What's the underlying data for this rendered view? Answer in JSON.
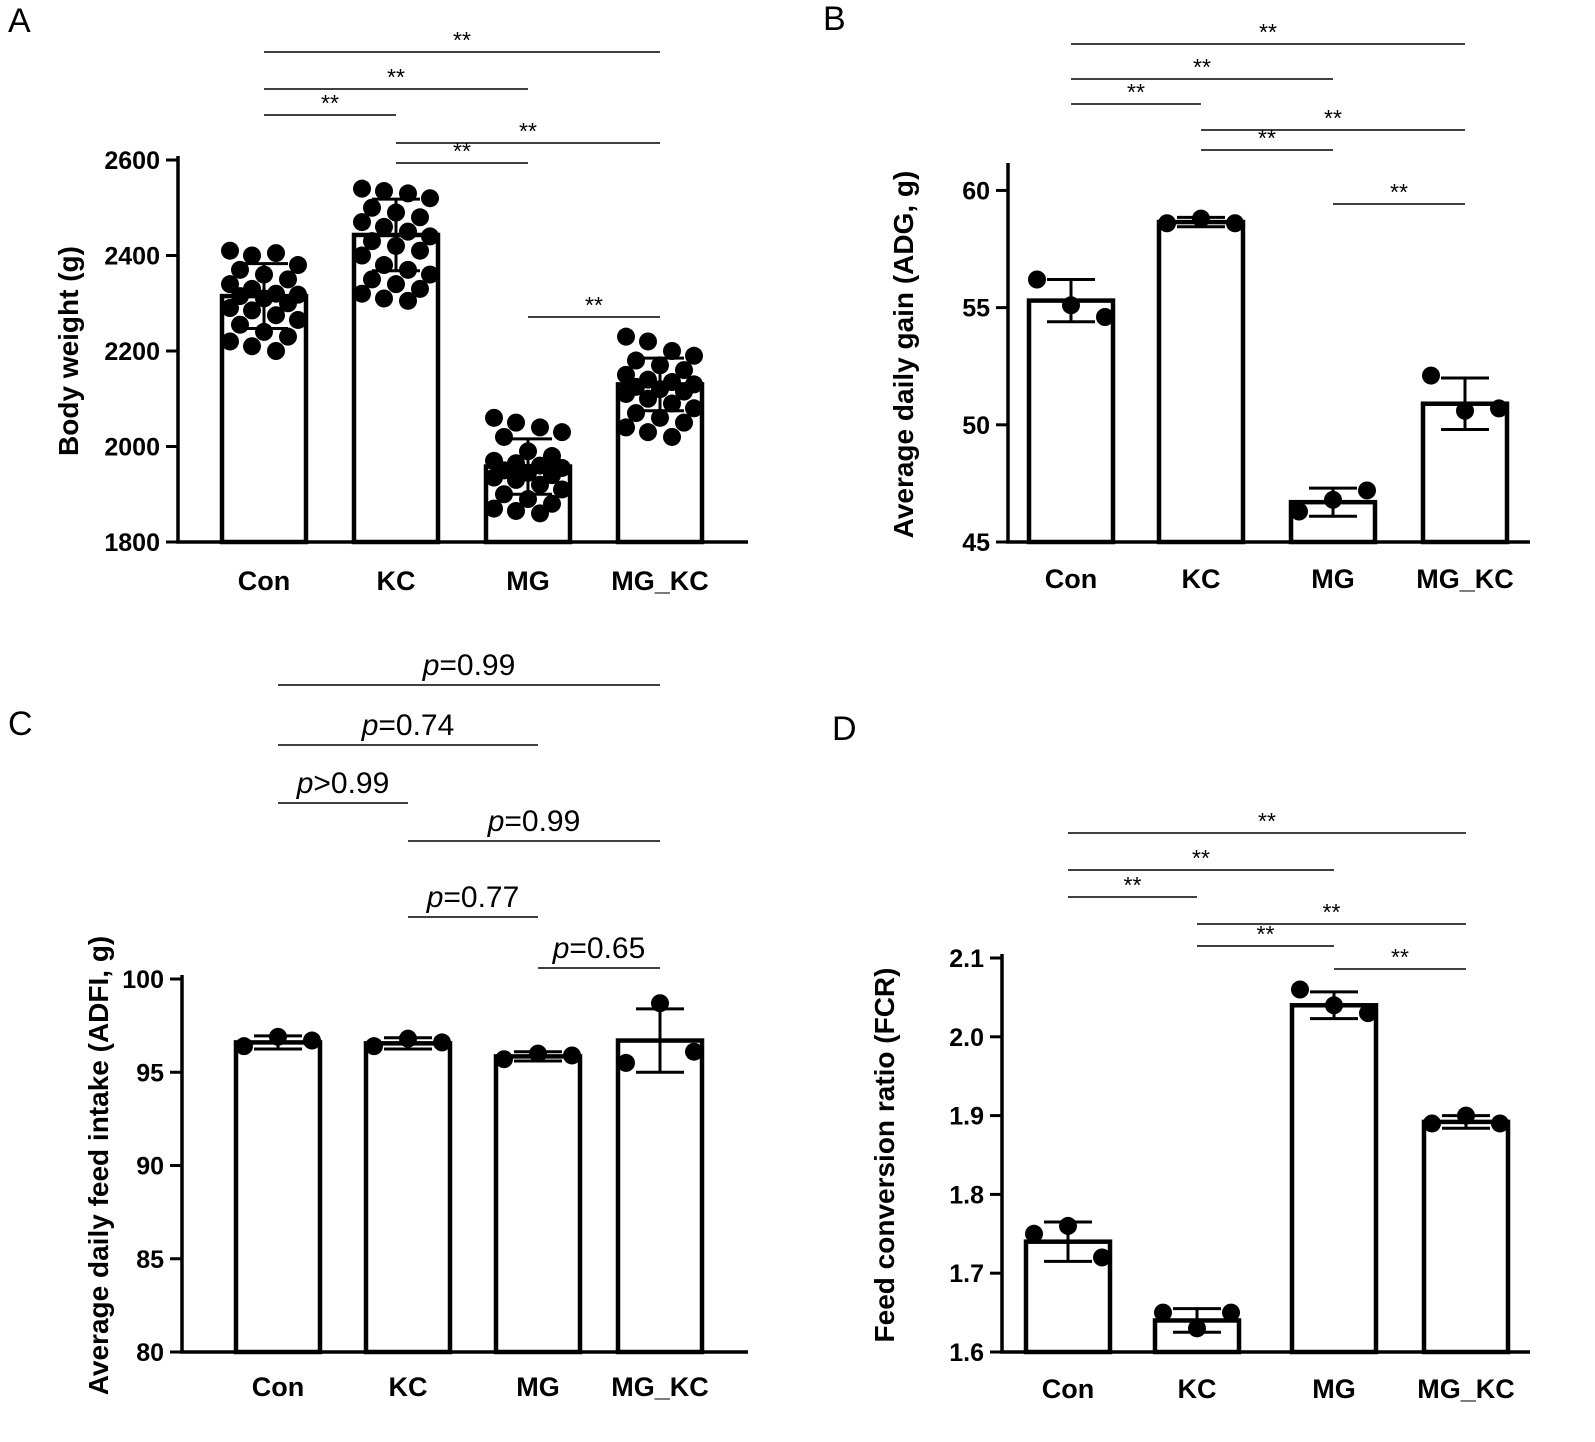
{
  "chart_data": [
    {
      "panel": "A",
      "type": "bar",
      "ylabel": "Body weight (g)",
      "ylim": [
        1800,
        2600
      ],
      "yticks": [
        1800,
        2000,
        2200,
        2400,
        2600
      ],
      "categories": [
        "Con",
        "KC",
        "MG",
        "MG_KC"
      ],
      "values": [
        2315,
        2443,
        1958,
        2130
      ],
      "errors": [
        68,
        75,
        58,
        55
      ],
      "points": [
        [
          2410,
          2400,
          2405,
          2380,
          2370,
          2360,
          2350,
          2340,
          2330,
          2320,
          2318,
          2315,
          2310,
          2300,
          2290,
          2285,
          2275,
          2265,
          2255,
          2240,
          2230,
          2220,
          2210,
          2200
        ],
        [
          2540,
          2535,
          2530,
          2520,
          2500,
          2490,
          2480,
          2470,
          2460,
          2450,
          2440,
          2430,
          2420,
          2410,
          2400,
          2380,
          2370,
          2360,
          2350,
          2340,
          2330,
          2320,
          2310,
          2305
        ],
        [
          2060,
          2050,
          2040,
          2030,
          2020,
          1990,
          1980,
          1970,
          1965,
          1960,
          1955,
          1950,
          1945,
          1940,
          1935,
          1930,
          1920,
          1910,
          1900,
          1890,
          1880,
          1870,
          1865,
          1860
        ],
        [
          2230,
          2220,
          2200,
          2190,
          2180,
          2170,
          2160,
          2150,
          2140,
          2135,
          2130,
          2125,
          2120,
          2115,
          2110,
          2100,
          2090,
          2080,
          2070,
          2060,
          2050,
          2040,
          2030,
          2020
        ]
      ],
      "comparisons": [
        {
          "from": 0,
          "to": 3,
          "label": "**"
        },
        {
          "from": 0,
          "to": 2,
          "label": "**"
        },
        {
          "from": 0,
          "to": 1,
          "label": "**"
        },
        {
          "from": 1,
          "to": 3,
          "label": "**"
        },
        {
          "from": 1,
          "to": 2,
          "label": "**"
        },
        {
          "from": 2,
          "to": 3,
          "label": "**"
        }
      ]
    },
    {
      "panel": "B",
      "type": "bar",
      "ylabel": "Average daily gain (ADG, g)",
      "ylim": [
        45,
        61
      ],
      "yticks": [
        45,
        50,
        55,
        60
      ],
      "categories": [
        "Con",
        "KC",
        "MG",
        "MG_KC"
      ],
      "values": [
        55.3,
        58.65,
        46.7,
        50.9
      ],
      "errors": [
        0.9,
        0.2,
        0.6,
        1.1
      ],
      "points": [
        [
          56.2,
          55.1,
          54.6
        ],
        [
          58.6,
          58.8,
          58.6
        ],
        [
          46.3,
          46.8,
          47.2
        ],
        [
          52.1,
          50.6,
          50.7
        ]
      ],
      "comparisons": [
        {
          "from": 0,
          "to": 3,
          "label": "**"
        },
        {
          "from": 0,
          "to": 2,
          "label": "**"
        },
        {
          "from": 0,
          "to": 1,
          "label": "**"
        },
        {
          "from": 1,
          "to": 3,
          "label": "**"
        },
        {
          "from": 1,
          "to": 2,
          "label": "**"
        },
        {
          "from": 2,
          "to": 3,
          "label": "**"
        }
      ]
    },
    {
      "panel": "C",
      "type": "bar",
      "ylabel": "Average daily feed intake (ADFI, g)",
      "ylim": [
        80,
        100
      ],
      "yticks": [
        80,
        85,
        90,
        95,
        100
      ],
      "categories": [
        "Con",
        "KC",
        "MG",
        "MG_KC"
      ],
      "values": [
        96.6,
        96.55,
        95.85,
        96.7
      ],
      "errors": [
        0.35,
        0.3,
        0.25,
        1.7
      ],
      "points": [
        [
          96.4,
          96.9,
          96.7
        ],
        [
          96.4,
          96.8,
          96.6
        ],
        [
          95.7,
          96.0,
          95.9
        ],
        [
          95.5,
          98.7,
          96.1
        ]
      ],
      "comparisons": [
        {
          "from": 0,
          "to": 3,
          "label": "p",
          "value": "=0.99"
        },
        {
          "from": 0,
          "to": 2,
          "label": "p",
          "value": "=0.74"
        },
        {
          "from": 0,
          "to": 1,
          "label": "p",
          "value": ">0.99"
        },
        {
          "from": 1,
          "to": 3,
          "label": "p",
          "value": "=0.99"
        },
        {
          "from": 1,
          "to": 2,
          "label": "p",
          "value": "=0.77"
        },
        {
          "from": 2,
          "to": 3,
          "label": "p",
          "value": "=0.65"
        }
      ]
    },
    {
      "panel": "D",
      "type": "bar",
      "ylabel": "Feed conversion ratio  (FCR)",
      "ylim": [
        1.6,
        2.1
      ],
      "yticks": [
        1.6,
        1.7,
        1.8,
        1.9,
        2.0,
        2.1
      ],
      "ytick_labels": [
        "1.6",
        "1.7",
        "1.8",
        "1.9",
        "2.0",
        "2.1"
      ],
      "categories": [
        "Con",
        "KC",
        "MG",
        "MG_KC"
      ],
      "values": [
        1.74,
        1.64,
        2.04,
        1.892
      ],
      "errors": [
        0.025,
        0.015,
        0.017,
        0.008
      ],
      "points": [
        [
          1.75,
          1.76,
          1.72
        ],
        [
          1.65,
          1.63,
          1.65
        ],
        [
          2.06,
          2.04,
          2.03
        ],
        [
          1.89,
          1.9,
          1.89
        ]
      ],
      "comparisons": [
        {
          "from": 0,
          "to": 3,
          "label": "**"
        },
        {
          "from": 0,
          "to": 2,
          "label": "**"
        },
        {
          "from": 0,
          "to": 1,
          "label": "**"
        },
        {
          "from": 1,
          "to": 3,
          "label": "**"
        },
        {
          "from": 1,
          "to": 2,
          "label": "**"
        },
        {
          "from": 2,
          "to": 3,
          "label": "**"
        }
      ]
    }
  ]
}
